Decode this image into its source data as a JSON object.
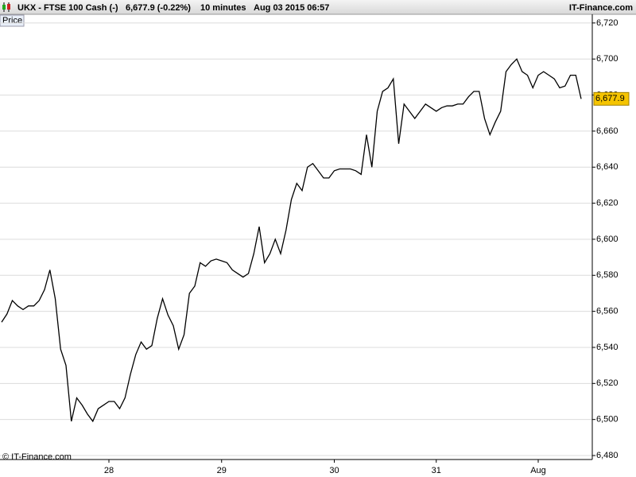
{
  "chart_data": {
    "type": "line",
    "title": "UKX - FTSE 100 Cash (-)",
    "quote": "6,677.9 (-0.22%)",
    "interval": "10 minutes",
    "datetime": "Aug 03 2015 06:57",
    "brand": "IT-Finance.com",
    "y_label": "Price",
    "copyright": "© IT-Finance.com",
    "grid": true,
    "categories": [
      null,
      null,
      null,
      null,
      null,
      null,
      null,
      null,
      null,
      null,
      null,
      null,
      null,
      null,
      null,
      null,
      null,
      null,
      null,
      null,
      "28",
      null,
      null,
      null,
      null,
      null,
      null,
      null,
      null,
      null,
      null,
      null,
      null,
      null,
      null,
      null,
      null,
      null,
      null,
      null,
      null,
      "29",
      null,
      null,
      null,
      null,
      null,
      null,
      null,
      null,
      null,
      null,
      null,
      null,
      null,
      null,
      null,
      null,
      null,
      null,
      null,
      null,
      "30",
      null,
      null,
      null,
      null,
      null,
      null,
      null,
      null,
      null,
      null,
      null,
      null,
      null,
      null,
      null,
      null,
      null,
      null,
      "31",
      null,
      null,
      null,
      null,
      null,
      null,
      null,
      null,
      null,
      null,
      null,
      null,
      null,
      null,
      null,
      null,
      null,
      null,
      "Aug",
      null,
      null,
      null,
      null,
      null,
      null,
      null,
      null
    ],
    "series": [
      {
        "name": "UKX",
        "color": "#000000",
        "values": [
          6554,
          6558.5,
          6566,
          6563,
          6561,
          6563,
          6563,
          6566,
          6572,
          6583,
          6567,
          6539,
          6530,
          6499,
          6512,
          6508,
          6503,
          6499,
          6506,
          6508,
          6510,
          6510,
          6506,
          6512,
          6525,
          6536,
          6543,
          6539,
          6541,
          6556,
          6567,
          6558,
          6552,
          6539,
          6547,
          6570,
          6574,
          6587,
          6585,
          6588,
          6589,
          6588,
          6587,
          6583,
          6581,
          6579,
          6581,
          6592,
          6607,
          6587,
          6592,
          6600,
          6592,
          6605,
          6622,
          6631,
          6627,
          6640,
          6642,
          6638,
          6634,
          6634,
          6638,
          6639,
          6639,
          6639,
          6638,
          6636,
          6658,
          6640,
          6671,
          6682,
          6684,
          6689,
          6653,
          6675,
          6671,
          6667,
          6671,
          6675,
          6673,
          6671,
          6673,
          6674,
          6674,
          6675,
          6675,
          6679,
          6682,
          6682,
          6667,
          6658,
          6665,
          6671,
          6693,
          6697,
          6700,
          6693,
          6691,
          6684,
          6691,
          6693,
          6691,
          6689,
          6684,
          6685,
          6691,
          6691,
          6677.9
        ]
      }
    ],
    "annotations": [
      {
        "value": 6677.9,
        "label": "6,677.9"
      }
    ],
    "ylim": [
      6477.8,
      6724.8
    ],
    "yticks": [
      {
        "value": 6480,
        "label": "6,480"
      },
      {
        "value": 6500,
        "label": "6,500"
      },
      {
        "value": 6520,
        "label": "6,520"
      },
      {
        "value": 6540,
        "label": "6,540"
      },
      {
        "value": 6560,
        "label": "6,560"
      },
      {
        "value": 6580,
        "label": "6,580"
      },
      {
        "value": 6600,
        "label": "6,600"
      },
      {
        "value": 6620,
        "label": "6,620"
      },
      {
        "value": 6640,
        "label": "6,640"
      },
      {
        "value": 6660,
        "label": "6,660"
      },
      {
        "value": 6680,
        "label": "6,680"
      },
      {
        "value": 6700,
        "label": "6,700"
      },
      {
        "value": 6720,
        "label": "6,720"
      }
    ]
  }
}
